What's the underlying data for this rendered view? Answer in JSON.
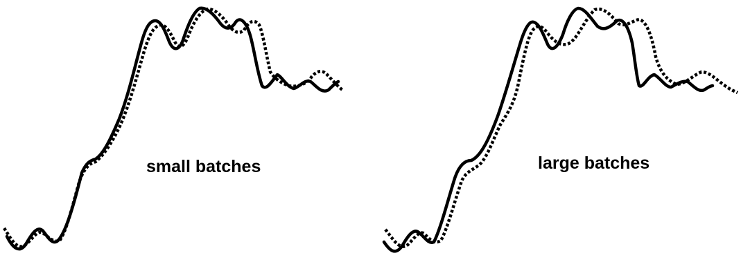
{
  "panels": [
    {
      "label": "small batches",
      "curves": [
        {
          "style": "solid",
          "color": "#000000"
        },
        {
          "style": "dotted",
          "color": "#000000"
        }
      ]
    },
    {
      "label": "large batches",
      "curves": [
        {
          "style": "solid",
          "color": "#000000"
        },
        {
          "style": "dotted",
          "color": "#000000"
        }
      ]
    }
  ]
}
